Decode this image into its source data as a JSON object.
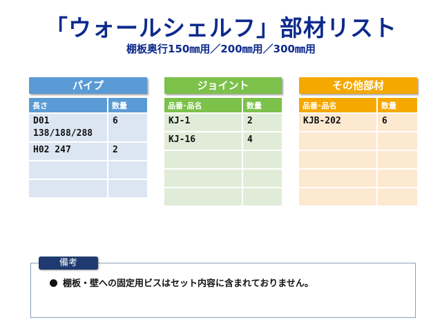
{
  "title": "「ウォールシェルフ」部材リスト",
  "subtitle": "棚板奥行150㎜用／200㎜用／300㎜用",
  "pipe": {
    "heading": "パイプ",
    "columns": [
      "長さ",
      "数量"
    ],
    "rows": [
      [
        "D01\n138/188/288",
        "6"
      ],
      [
        "H02   247",
        "2"
      ],
      [
        "",
        ""
      ],
      [
        "",
        ""
      ]
    ]
  },
  "joint": {
    "heading": "ジョイント",
    "columns": [
      "品番･品名",
      "数量"
    ],
    "rows": [
      [
        "KJ-1",
        "2"
      ],
      [
        "KJ-16",
        "4"
      ],
      [
        "",
        ""
      ],
      [
        "",
        ""
      ],
      [
        "",
        ""
      ]
    ]
  },
  "other": {
    "heading": "その他部材",
    "columns": [
      "品番･品名",
      "数量"
    ],
    "rows": [
      [
        "KJB-202",
        "6"
      ],
      [
        "",
        ""
      ],
      [
        "",
        ""
      ],
      [
        "",
        ""
      ],
      [
        "",
        ""
      ]
    ]
  },
  "notes": {
    "label": "備考",
    "text": "棚板・壁への固定用ビスはセット内容に含まれておりません。"
  },
  "colors": {
    "title": "#0d2a8c",
    "pipe": "#5b9bd5",
    "joint": "#7cc14a",
    "other": "#f5a800"
  }
}
